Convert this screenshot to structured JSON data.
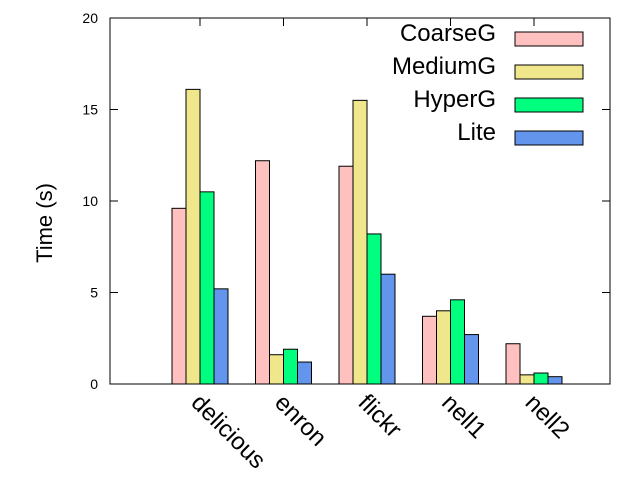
{
  "chart_data": {
    "type": "bar",
    "title": "",
    "xlabel": "",
    "ylabel": "Time (s)",
    "ylim": [
      0,
      20
    ],
    "yticks": [
      0,
      5,
      10,
      15,
      20
    ],
    "categories": [
      "delicious",
      "enron",
      "flickr",
      "nell1",
      "nell2"
    ],
    "series": [
      {
        "name": "CoarseG",
        "color": "#ffc0c0",
        "values": [
          9.6,
          12.2,
          11.9,
          3.7,
          2.2
        ]
      },
      {
        "name": "MediumG",
        "color": "#f0e68c",
        "values": [
          16.1,
          1.6,
          15.5,
          4.0,
          0.5
        ]
      },
      {
        "name": "HyperG",
        "color": "#00ff7f",
        "values": [
          10.5,
          1.9,
          8.2,
          4.6,
          0.6
        ]
      },
      {
        "name": "Lite",
        "color": "#6495ed",
        "values": [
          5.2,
          1.2,
          6.0,
          2.7,
          0.4
        ]
      }
    ],
    "legend_position": "top-right",
    "grid": false
  }
}
